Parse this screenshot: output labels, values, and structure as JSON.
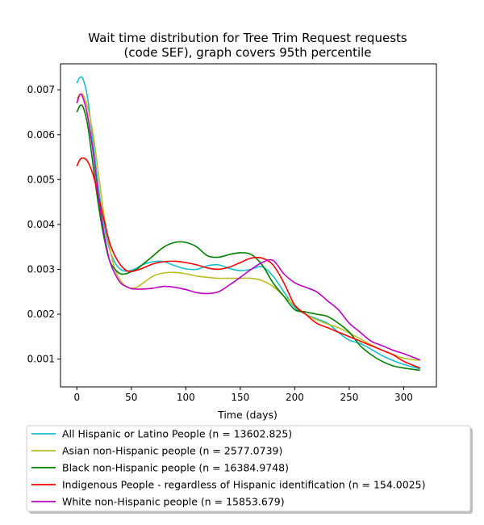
{
  "chart_data": {
    "type": "line",
    "title_line1": "Wait time distribution  for Tree Trim Request  requests",
    "title_line2": "(code SEF), graph covers 95th percentile",
    "xlabel": "Time (days)",
    "ylabel": "",
    "xlim": [
      -15,
      330
    ],
    "ylim": [
      0.00038,
      0.00758
    ],
    "x_ticks": [
      0,
      50,
      100,
      150,
      200,
      250,
      300
    ],
    "y_ticks": [
      0.001,
      0.002,
      0.003,
      0.004,
      0.005,
      0.006,
      0.007
    ],
    "y_tick_labels": [
      "0.001",
      "0.002",
      "0.003",
      "0.004",
      "0.005",
      "0.006",
      "0.007"
    ],
    "grid": false,
    "legend_placement": "bottom",
    "series": [
      {
        "name": "All Hispanic or Latino People (n = 13602.825)",
        "color": "#17becf",
        "points": [
          [
            0,
            0.00715
          ],
          [
            3,
            0.00728
          ],
          [
            6,
            0.00722
          ],
          [
            10,
            0.0068
          ],
          [
            15,
            0.0058
          ],
          [
            20,
            0.0048
          ],
          [
            25,
            0.004
          ],
          [
            30,
            0.00345
          ],
          [
            35,
            0.00315
          ],
          [
            40,
            0.003
          ],
          [
            45,
            0.00296
          ],
          [
            50,
            0.00298
          ],
          [
            55,
            0.00303
          ],
          [
            60,
            0.0031
          ],
          [
            70,
            0.00317
          ],
          [
            80,
            0.00317
          ],
          [
            90,
            0.00308
          ],
          [
            100,
            0.00301
          ],
          [
            110,
            0.003
          ],
          [
            120,
            0.00308
          ],
          [
            130,
            0.0031
          ],
          [
            140,
            0.00302
          ],
          [
            150,
            0.00297
          ],
          [
            160,
            0.003
          ],
          [
            170,
            0.00306
          ],
          [
            180,
            0.00285
          ],
          [
            190,
            0.0025
          ],
          [
            200,
            0.00215
          ],
          [
            210,
            0.002
          ],
          [
            220,
            0.0019
          ],
          [
            230,
            0.0018
          ],
          [
            240,
            0.0016
          ],
          [
            250,
            0.00142
          ],
          [
            260,
            0.00135
          ],
          [
            270,
            0.00122
          ],
          [
            280,
            0.00108
          ],
          [
            290,
            0.00097
          ],
          [
            300,
            0.00088
          ],
          [
            315,
            0.00078
          ]
        ]
      },
      {
        "name": "Asian non-Hispanic people (n = 2577.0739)",
        "color": "#bcbd22",
        "points": [
          [
            0,
            0.0068
          ],
          [
            3,
            0.0069
          ],
          [
            6,
            0.00688
          ],
          [
            10,
            0.0066
          ],
          [
            15,
            0.006
          ],
          [
            20,
            0.0051
          ],
          [
            25,
            0.0042
          ],
          [
            30,
            0.0035
          ],
          [
            35,
            0.003
          ],
          [
            40,
            0.00275
          ],
          [
            45,
            0.00262
          ],
          [
            50,
            0.00258
          ],
          [
            55,
            0.0026
          ],
          [
            60,
            0.00268
          ],
          [
            70,
            0.00285
          ],
          [
            80,
            0.00292
          ],
          [
            90,
            0.00293
          ],
          [
            100,
            0.0029
          ],
          [
            110,
            0.00285
          ],
          [
            120,
            0.00282
          ],
          [
            130,
            0.0028
          ],
          [
            140,
            0.0028
          ],
          [
            150,
            0.0028
          ],
          [
            160,
            0.0028
          ],
          [
            170,
            0.00275
          ],
          [
            180,
            0.00262
          ],
          [
            190,
            0.0024
          ],
          [
            200,
            0.0022
          ],
          [
            210,
            0.002
          ],
          [
            220,
            0.00188
          ],
          [
            230,
            0.00178
          ],
          [
            240,
            0.0017
          ],
          [
            250,
            0.00158
          ],
          [
            260,
            0.00145
          ],
          [
            270,
            0.00132
          ],
          [
            280,
            0.0012
          ],
          [
            290,
            0.0011
          ],
          [
            300,
            0.00102
          ],
          [
            315,
            0.00097
          ]
        ]
      },
      {
        "name": "Black non-Hispanic people (n = 16384.9748)",
        "color": "#008000",
        "points": [
          [
            0,
            0.0065
          ],
          [
            3,
            0.00665
          ],
          [
            6,
            0.0066
          ],
          [
            10,
            0.0062
          ],
          [
            15,
            0.0053
          ],
          [
            20,
            0.0044
          ],
          [
            25,
            0.0037
          ],
          [
            30,
            0.0032
          ],
          [
            35,
            0.003
          ],
          [
            40,
            0.0029
          ],
          [
            45,
            0.0029
          ],
          [
            50,
            0.00295
          ],
          [
            55,
            0.003
          ],
          [
            60,
            0.0031
          ],
          [
            70,
            0.0033
          ],
          [
            80,
            0.0035
          ],
          [
            90,
            0.0036
          ],
          [
            100,
            0.0036
          ],
          [
            110,
            0.0035
          ],
          [
            120,
            0.0033
          ],
          [
            130,
            0.00327
          ],
          [
            140,
            0.00333
          ],
          [
            150,
            0.00337
          ],
          [
            160,
            0.00333
          ],
          [
            170,
            0.0031
          ],
          [
            180,
            0.0027
          ],
          [
            190,
            0.0024
          ],
          [
            200,
            0.0021
          ],
          [
            210,
            0.00205
          ],
          [
            220,
            0.002
          ],
          [
            230,
            0.00195
          ],
          [
            240,
            0.0018
          ],
          [
            250,
            0.0016
          ],
          [
            260,
            0.0013
          ],
          [
            270,
            0.0011
          ],
          [
            280,
            0.00095
          ],
          [
            290,
            0.00085
          ],
          [
            300,
            0.0008
          ],
          [
            315,
            0.00075
          ]
        ]
      },
      {
        "name": "Indigenous People - regardless of Hispanic identification (n = 154.0025)",
        "color": "#ff0000",
        "points": [
          [
            0,
            0.0053
          ],
          [
            3,
            0.00545
          ],
          [
            6,
            0.00548
          ],
          [
            10,
            0.0054
          ],
          [
            15,
            0.0051
          ],
          [
            20,
            0.0046
          ],
          [
            25,
            0.0041
          ],
          [
            30,
            0.0036
          ],
          [
            35,
            0.0033
          ],
          [
            40,
            0.0031
          ],
          [
            45,
            0.00298
          ],
          [
            50,
            0.00295
          ],
          [
            55,
            0.00298
          ],
          [
            60,
            0.00302
          ],
          [
            70,
            0.00312
          ],
          [
            80,
            0.00317
          ],
          [
            90,
            0.00318
          ],
          [
            100,
            0.00315
          ],
          [
            110,
            0.0031
          ],
          [
            120,
            0.00303
          ],
          [
            130,
            0.003
          ],
          [
            140,
            0.00305
          ],
          [
            150,
            0.00315
          ],
          [
            160,
            0.00325
          ],
          [
            170,
            0.00325
          ],
          [
            180,
            0.0031
          ],
          [
            190,
            0.0027
          ],
          [
            200,
            0.0022
          ],
          [
            210,
            0.002
          ],
          [
            220,
            0.0018
          ],
          [
            230,
            0.0017
          ],
          [
            240,
            0.0016
          ],
          [
            250,
            0.0015
          ],
          [
            260,
            0.0014
          ],
          [
            270,
            0.0013
          ],
          [
            280,
            0.0012
          ],
          [
            290,
            0.0011
          ],
          [
            300,
            0.00095
          ],
          [
            315,
            0.0008
          ]
        ]
      },
      {
        "name": "White non-Hispanic people (n = 15853.679)",
        "color": "#bf00bf",
        "points": [
          [
            0,
            0.0067
          ],
          [
            3,
            0.0069
          ],
          [
            6,
            0.0068
          ],
          [
            10,
            0.0064
          ],
          [
            15,
            0.0056
          ],
          [
            20,
            0.0046
          ],
          [
            25,
            0.0038
          ],
          [
            30,
            0.0032
          ],
          [
            35,
            0.0029
          ],
          [
            40,
            0.0027
          ],
          [
            45,
            0.00262
          ],
          [
            50,
            0.00257
          ],
          [
            55,
            0.00256
          ],
          [
            60,
            0.00256
          ],
          [
            70,
            0.00258
          ],
          [
            80,
            0.00262
          ],
          [
            90,
            0.0026
          ],
          [
            100,
            0.00255
          ],
          [
            110,
            0.00248
          ],
          [
            120,
            0.00246
          ],
          [
            130,
            0.0025
          ],
          [
            140,
            0.00265
          ],
          [
            150,
            0.00282
          ],
          [
            160,
            0.003
          ],
          [
            170,
            0.00315
          ],
          [
            180,
            0.0032
          ],
          [
            190,
            0.0029
          ],
          [
            200,
            0.0027
          ],
          [
            210,
            0.0026
          ],
          [
            220,
            0.0025
          ],
          [
            230,
            0.0023
          ],
          [
            240,
            0.0021
          ],
          [
            250,
            0.0018
          ],
          [
            260,
            0.0016
          ],
          [
            270,
            0.0014
          ],
          [
            280,
            0.0013
          ],
          [
            290,
            0.0012
          ],
          [
            300,
            0.00112
          ],
          [
            315,
            0.00098
          ]
        ]
      }
    ]
  }
}
